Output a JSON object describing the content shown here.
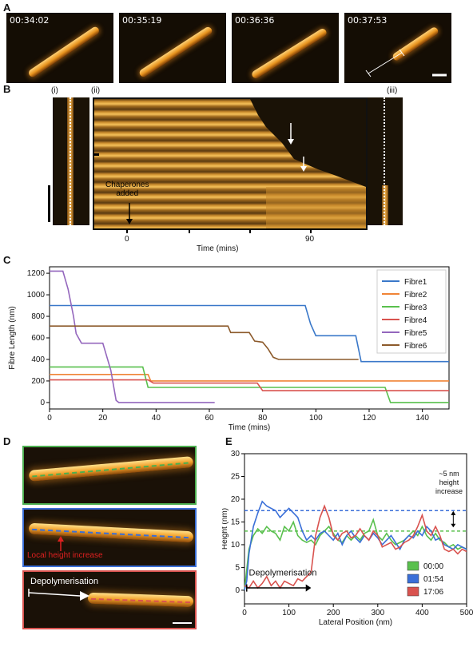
{
  "panel_labels": {
    "a": "A",
    "b": "B",
    "c": "C",
    "d": "D",
    "e": "E"
  },
  "panel_a": {
    "timestamps": [
      "00:34:02",
      "00:35:19",
      "00:36:36",
      "00:37:53"
    ]
  },
  "panel_b": {
    "sub_labels": [
      "(i)",
      "(ii)",
      "(iii)"
    ],
    "annotation": "Chaperones\nadded",
    "x_ticks": [
      "0",
      "90"
    ],
    "xlabel": "Time (mins)"
  },
  "panel_d": {
    "annotation_local": "Local height increase",
    "annotation_depoly": "Depolymerisation",
    "colors": [
      "#4caf50",
      "#3a6fd8",
      "#d9534f"
    ]
  },
  "chart_data": [
    {
      "type": "line",
      "xlabel": "Time (mins)",
      "ylabel": "Fibre Length (nm)",
      "xlim": [
        0,
        150
      ],
      "ylim": [
        -60,
        1260
      ],
      "x_ticks": [
        0,
        20,
        40,
        60,
        80,
        100,
        120,
        140
      ],
      "y_ticks": [
        0,
        200,
        400,
        600,
        800,
        1000,
        1200
      ],
      "legend_position": "top-right",
      "series": [
        {
          "name": "Fibre1",
          "color": "#3a78c9",
          "points": [
            [
              0,
              900
            ],
            [
              96,
              900
            ],
            [
              98,
              730
            ],
            [
              100,
              620
            ],
            [
              113,
              620
            ],
            [
              115,
              620
            ],
            [
              117,
              380
            ],
            [
              150,
              380
            ]
          ]
        },
        {
          "name": "Fibre2",
          "color": "#f08436",
          "points": [
            [
              0,
              260
            ],
            [
              37,
              260
            ],
            [
              38,
              200
            ],
            [
              150,
              200
            ]
          ]
        },
        {
          "name": "Fibre3",
          "color": "#59c04d",
          "points": [
            [
              0,
              330
            ],
            [
              35,
              330
            ],
            [
              37,
              140
            ],
            [
              126,
              140
            ],
            [
              128,
              0
            ],
            [
              150,
              0
            ]
          ]
        },
        {
          "name": "Fibre4",
          "color": "#d9534f",
          "points": [
            [
              0,
              210
            ],
            [
              37,
              210
            ],
            [
              39,
              180
            ],
            [
              78,
              180
            ],
            [
              80,
              110
            ],
            [
              150,
              110
            ]
          ]
        },
        {
          "name": "Fibre5",
          "color": "#9467bd",
          "points": [
            [
              0,
              1220
            ],
            [
              5,
              1220
            ],
            [
              7,
              1050
            ],
            [
              9,
              800
            ],
            [
              10,
              640
            ],
            [
              12,
              550
            ],
            [
              14,
              550
            ],
            [
              20,
              550
            ],
            [
              23,
              300
            ],
            [
              25,
              20
            ],
            [
              26,
              0
            ],
            [
              62,
              0
            ]
          ]
        },
        {
          "name": "Fibre6",
          "color": "#8c5a2b",
          "points": [
            [
              0,
              710
            ],
            [
              67,
              710
            ],
            [
              68,
              650
            ],
            [
              75,
              650
            ],
            [
              77,
              570
            ],
            [
              80,
              560
            ],
            [
              82,
              500
            ],
            [
              84,
              420
            ],
            [
              86,
              400
            ],
            [
              116,
              400
            ]
          ]
        }
      ]
    },
    {
      "type": "line",
      "xlabel": "Lateral Position (nm)",
      "ylabel": "Height (nm)",
      "xlim": [
        0,
        500
      ],
      "ylim": [
        -3,
        30
      ],
      "x_ticks": [
        0,
        100,
        200,
        300,
        400,
        500
      ],
      "y_ticks": [
        0,
        5,
        10,
        15,
        20,
        25,
        30
      ],
      "legend_position": "bottom-right",
      "annotations": [
        "~5 nm\nheight\nincrease",
        "Depolymerisation"
      ],
      "reference_lines": [
        {
          "y": 17.5,
          "color": "#3a6fd8"
        },
        {
          "y": 13,
          "color": "#59c04d"
        }
      ],
      "series": [
        {
          "name": "00:00",
          "color": "#59c04d",
          "points": [
            [
              0,
              0
            ],
            [
              10,
              9
            ],
            [
              20,
              12
            ],
            [
              30,
              13.5
            ],
            [
              40,
              12.5
            ],
            [
              50,
              14
            ],
            [
              60,
              13
            ],
            [
              70,
              12.5
            ],
            [
              80,
              11
            ],
            [
              90,
              14
            ],
            [
              100,
              13
            ],
            [
              110,
              15
            ],
            [
              120,
              12
            ],
            [
              130,
              11
            ],
            [
              140,
              10.5
            ],
            [
              150,
              11
            ],
            [
              160,
              10
            ],
            [
              170,
              12
            ],
            [
              180,
              13
            ],
            [
              190,
              14
            ],
            [
              200,
              12.5
            ],
            [
              210,
              11
            ],
            [
              220,
              10.5
            ],
            [
              230,
              12
            ],
            [
              240,
              11
            ],
            [
              250,
              12
            ],
            [
              260,
              11
            ],
            [
              270,
              12.5
            ],
            [
              280,
              13
            ],
            [
              290,
              15.5
            ],
            [
              300,
              12
            ],
            [
              310,
              11
            ],
            [
              320,
              12.5
            ],
            [
              330,
              11
            ],
            [
              340,
              10
            ],
            [
              350,
              10.5
            ],
            [
              360,
              11
            ],
            [
              370,
              12
            ],
            [
              380,
              13
            ],
            [
              390,
              12
            ],
            [
              400,
              14
            ],
            [
              410,
              12
            ],
            [
              420,
              11
            ],
            [
              430,
              12.5
            ],
            [
              440,
              11
            ],
            [
              450,
              10.5
            ],
            [
              460,
              9.5
            ],
            [
              470,
              10
            ],
            [
              480,
              9
            ],
            [
              490,
              9.5
            ],
            [
              500,
              9
            ]
          ]
        },
        {
          "name": "01:54",
          "color": "#3a6fd8",
          "points": [
            [
              0,
              0
            ],
            [
              5,
              2
            ],
            [
              10,
              8
            ],
            [
              20,
              14
            ],
            [
              30,
              17
            ],
            [
              40,
              19.5
            ],
            [
              50,
              18.5
            ],
            [
              60,
              18
            ],
            [
              70,
              17.5
            ],
            [
              80,
              16
            ],
            [
              90,
              17
            ],
            [
              100,
              18
            ],
            [
              110,
              17
            ],
            [
              120,
              16
            ],
            [
              130,
              13
            ],
            [
              140,
              11
            ],
            [
              150,
              12
            ],
            [
              160,
              11
            ],
            [
              170,
              12.5
            ],
            [
              180,
              13
            ],
            [
              190,
              12
            ],
            [
              200,
              11
            ],
            [
              210,
              12.5
            ],
            [
              220,
              10
            ],
            [
              230,
              12
            ],
            [
              240,
              13
            ],
            [
              250,
              11.5
            ],
            [
              260,
              10.5
            ],
            [
              270,
              12
            ],
            [
              280,
              11
            ],
            [
              290,
              12.5
            ],
            [
              300,
              11.5
            ],
            [
              310,
              10
            ],
            [
              320,
              11
            ],
            [
              330,
              12
            ],
            [
              340,
              10.5
            ],
            [
              350,
              9
            ],
            [
              360,
              11
            ],
            [
              370,
              12
            ],
            [
              380,
              11.5
            ],
            [
              390,
              13
            ],
            [
              400,
              12
            ],
            [
              410,
              14
            ],
            [
              420,
              13
            ],
            [
              430,
              11
            ],
            [
              440,
              11.5
            ],
            [
              450,
              10
            ],
            [
              460,
              9.5
            ],
            [
              470,
              9
            ],
            [
              480,
              10
            ],
            [
              490,
              9.5
            ],
            [
              500,
              9
            ]
          ]
        },
        {
          "name": "17:06",
          "color": "#d9534f",
          "points": [
            [
              0,
              1
            ],
            [
              10,
              0.5
            ],
            [
              20,
              2
            ],
            [
              30,
              0.5
            ],
            [
              40,
              1.5
            ],
            [
              50,
              3
            ],
            [
              60,
              1
            ],
            [
              70,
              2
            ],
            [
              80,
              0.5
            ],
            [
              90,
              2
            ],
            [
              100,
              1.5
            ],
            [
              110,
              1
            ],
            [
              120,
              2.5
            ],
            [
              130,
              2
            ],
            [
              140,
              3
            ],
            [
              150,
              4
            ],
            [
              160,
              12
            ],
            [
              170,
              16
            ],
            [
              180,
              18.5
            ],
            [
              190,
              16
            ],
            [
              200,
              12
            ],
            [
              210,
              11
            ],
            [
              220,
              12.5
            ],
            [
              230,
              13
            ],
            [
              240,
              11.5
            ],
            [
              250,
              12
            ],
            [
              260,
              13.5
            ],
            [
              270,
              12
            ],
            [
              280,
              11
            ],
            [
              290,
              13
            ],
            [
              300,
              12
            ],
            [
              310,
              9.5
            ],
            [
              320,
              10
            ],
            [
              330,
              10.5
            ],
            [
              340,
              9
            ],
            [
              350,
              9.5
            ],
            [
              360,
              10.5
            ],
            [
              370,
              11
            ],
            [
              380,
              12
            ],
            [
              390,
              14
            ],
            [
              400,
              16.5
            ],
            [
              410,
              13
            ],
            [
              420,
              12
            ],
            [
              430,
              14
            ],
            [
              440,
              12
            ],
            [
              450,
              9
            ],
            [
              460,
              8.5
            ],
            [
              470,
              9
            ],
            [
              480,
              8
            ],
            [
              490,
              9
            ],
            [
              500,
              8.5
            ]
          ]
        }
      ]
    }
  ]
}
